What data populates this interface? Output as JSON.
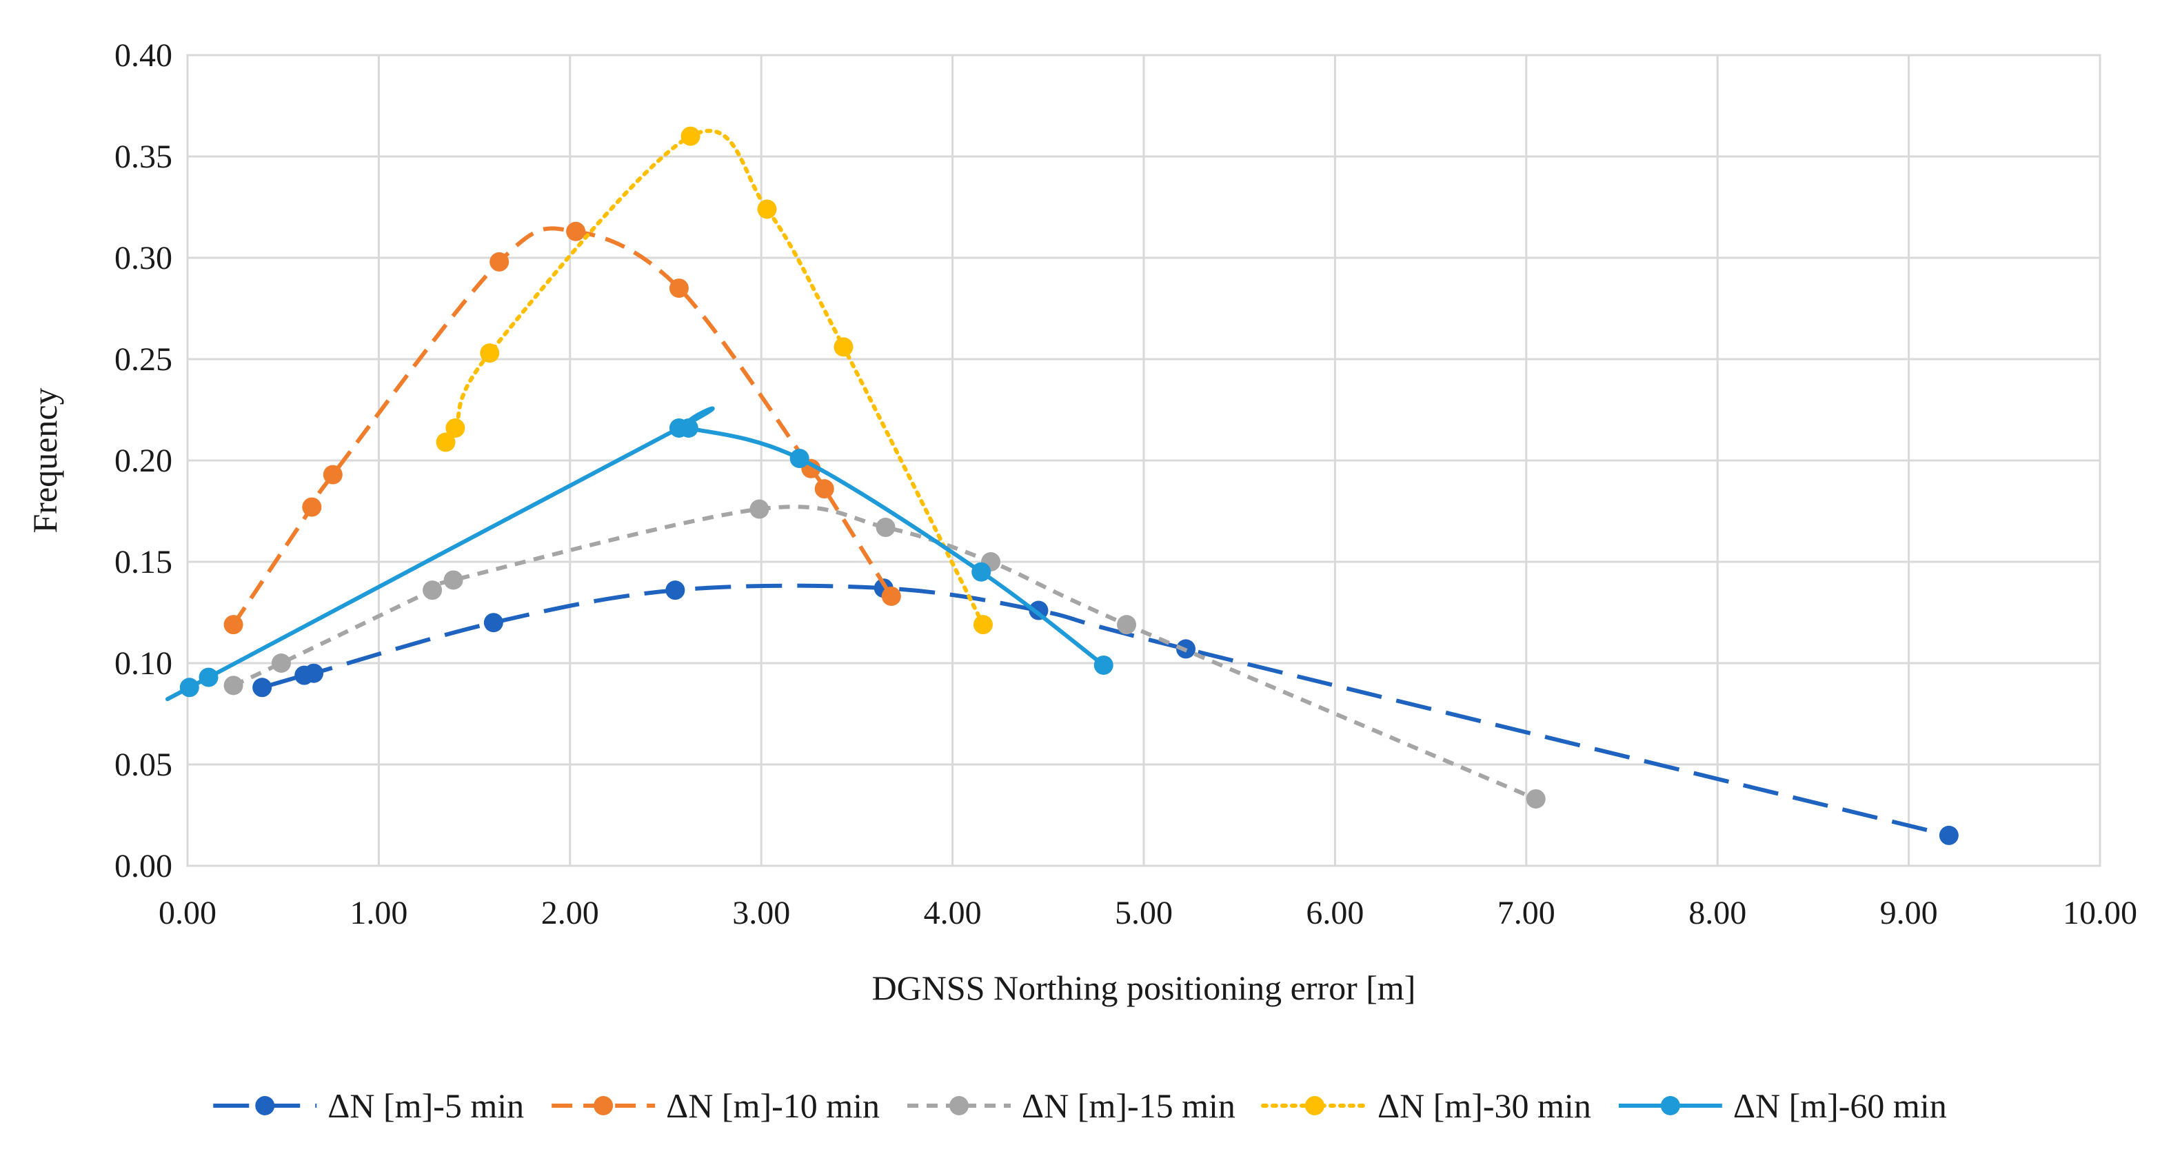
{
  "chart_data": {
    "type": "line",
    "title": "",
    "xlabel": "DGNSS Northing positioning error [m]",
    "ylabel": "Frequency",
    "xlim": [
      0,
      10
    ],
    "ylim": [
      0,
      0.4
    ],
    "xticks": [
      0,
      1,
      2,
      3,
      4,
      5,
      6,
      7,
      8,
      9,
      10
    ],
    "yticks": [
      0,
      0.05,
      0.1,
      0.15,
      0.2,
      0.25,
      0.3,
      0.35,
      0.4
    ],
    "xtick_labels": [
      "0.00",
      "1.00",
      "2.00",
      "3.00",
      "4.00",
      "5.00",
      "6.00",
      "7.00",
      "8.00",
      "9.00",
      "10.00"
    ],
    "ytick_labels": [
      "0.00",
      "0.05",
      "0.10",
      "0.15",
      "0.20",
      "0.25",
      "0.30",
      "0.35",
      "0.40"
    ],
    "grid": true,
    "legend_position": "bottom",
    "series": [
      {
        "name": "ΔN [m]-5 min",
        "color": "#1F63C0",
        "dash": "long-dash",
        "marker": "circle",
        "points": [
          [
            0.39,
            0.088
          ],
          [
            0.61,
            0.094
          ],
          [
            0.66,
            0.095
          ],
          [
            1.6,
            0.12
          ],
          [
            2.55,
            0.136
          ],
          [
            3.64,
            0.137
          ],
          [
            4.45,
            0.126
          ],
          [
            5.22,
            0.107
          ],
          [
            9.21,
            0.015
          ]
        ]
      },
      {
        "name": "ΔN [m]-10 min",
        "color": "#F07D2B",
        "dash": "dash",
        "marker": "circle",
        "points": [
          [
            0.24,
            0.119
          ],
          [
            0.65,
            0.177
          ],
          [
            0.76,
            0.193
          ],
          [
            1.63,
            0.298
          ],
          [
            2.03,
            0.313
          ],
          [
            2.57,
            0.285
          ],
          [
            3.26,
            0.196
          ],
          [
            3.33,
            0.186
          ],
          [
            3.68,
            0.133
          ]
        ]
      },
      {
        "name": "ΔN [m]-15 min",
        "color": "#A5A5A5",
        "dash": "short-dash",
        "marker": "circle",
        "points": [
          [
            0.24,
            0.089
          ],
          [
            0.49,
            0.1
          ],
          [
            1.28,
            0.136
          ],
          [
            1.39,
            0.141
          ],
          [
            2.99,
            0.176
          ],
          [
            3.65,
            0.167
          ],
          [
            4.2,
            0.15
          ],
          [
            4.91,
            0.119
          ],
          [
            7.05,
            0.033
          ]
        ]
      },
      {
        "name": "ΔN [m]-30 min",
        "color": "#FFBF00",
        "dash": "dot",
        "marker": "circle",
        "points": [
          [
            1.35,
            0.209
          ],
          [
            1.4,
            0.216
          ],
          [
            1.58,
            0.253
          ],
          [
            2.63,
            0.36
          ],
          [
            3.03,
            0.324
          ],
          [
            3.43,
            0.256
          ],
          [
            4.16,
            0.119
          ]
        ]
      },
      {
        "name": "ΔN [m]-60 min",
        "color": "#1E9AD8",
        "dash": "solid",
        "marker": "circle",
        "points": [
          [
            0.01,
            0.088
          ],
          [
            0.11,
            0.093
          ],
          [
            2.57,
            0.216
          ],
          [
            2.62,
            0.216
          ],
          [
            3.2,
            0.201
          ],
          [
            4.15,
            0.145
          ],
          [
            4.79,
            0.099
          ]
        ]
      }
    ]
  }
}
